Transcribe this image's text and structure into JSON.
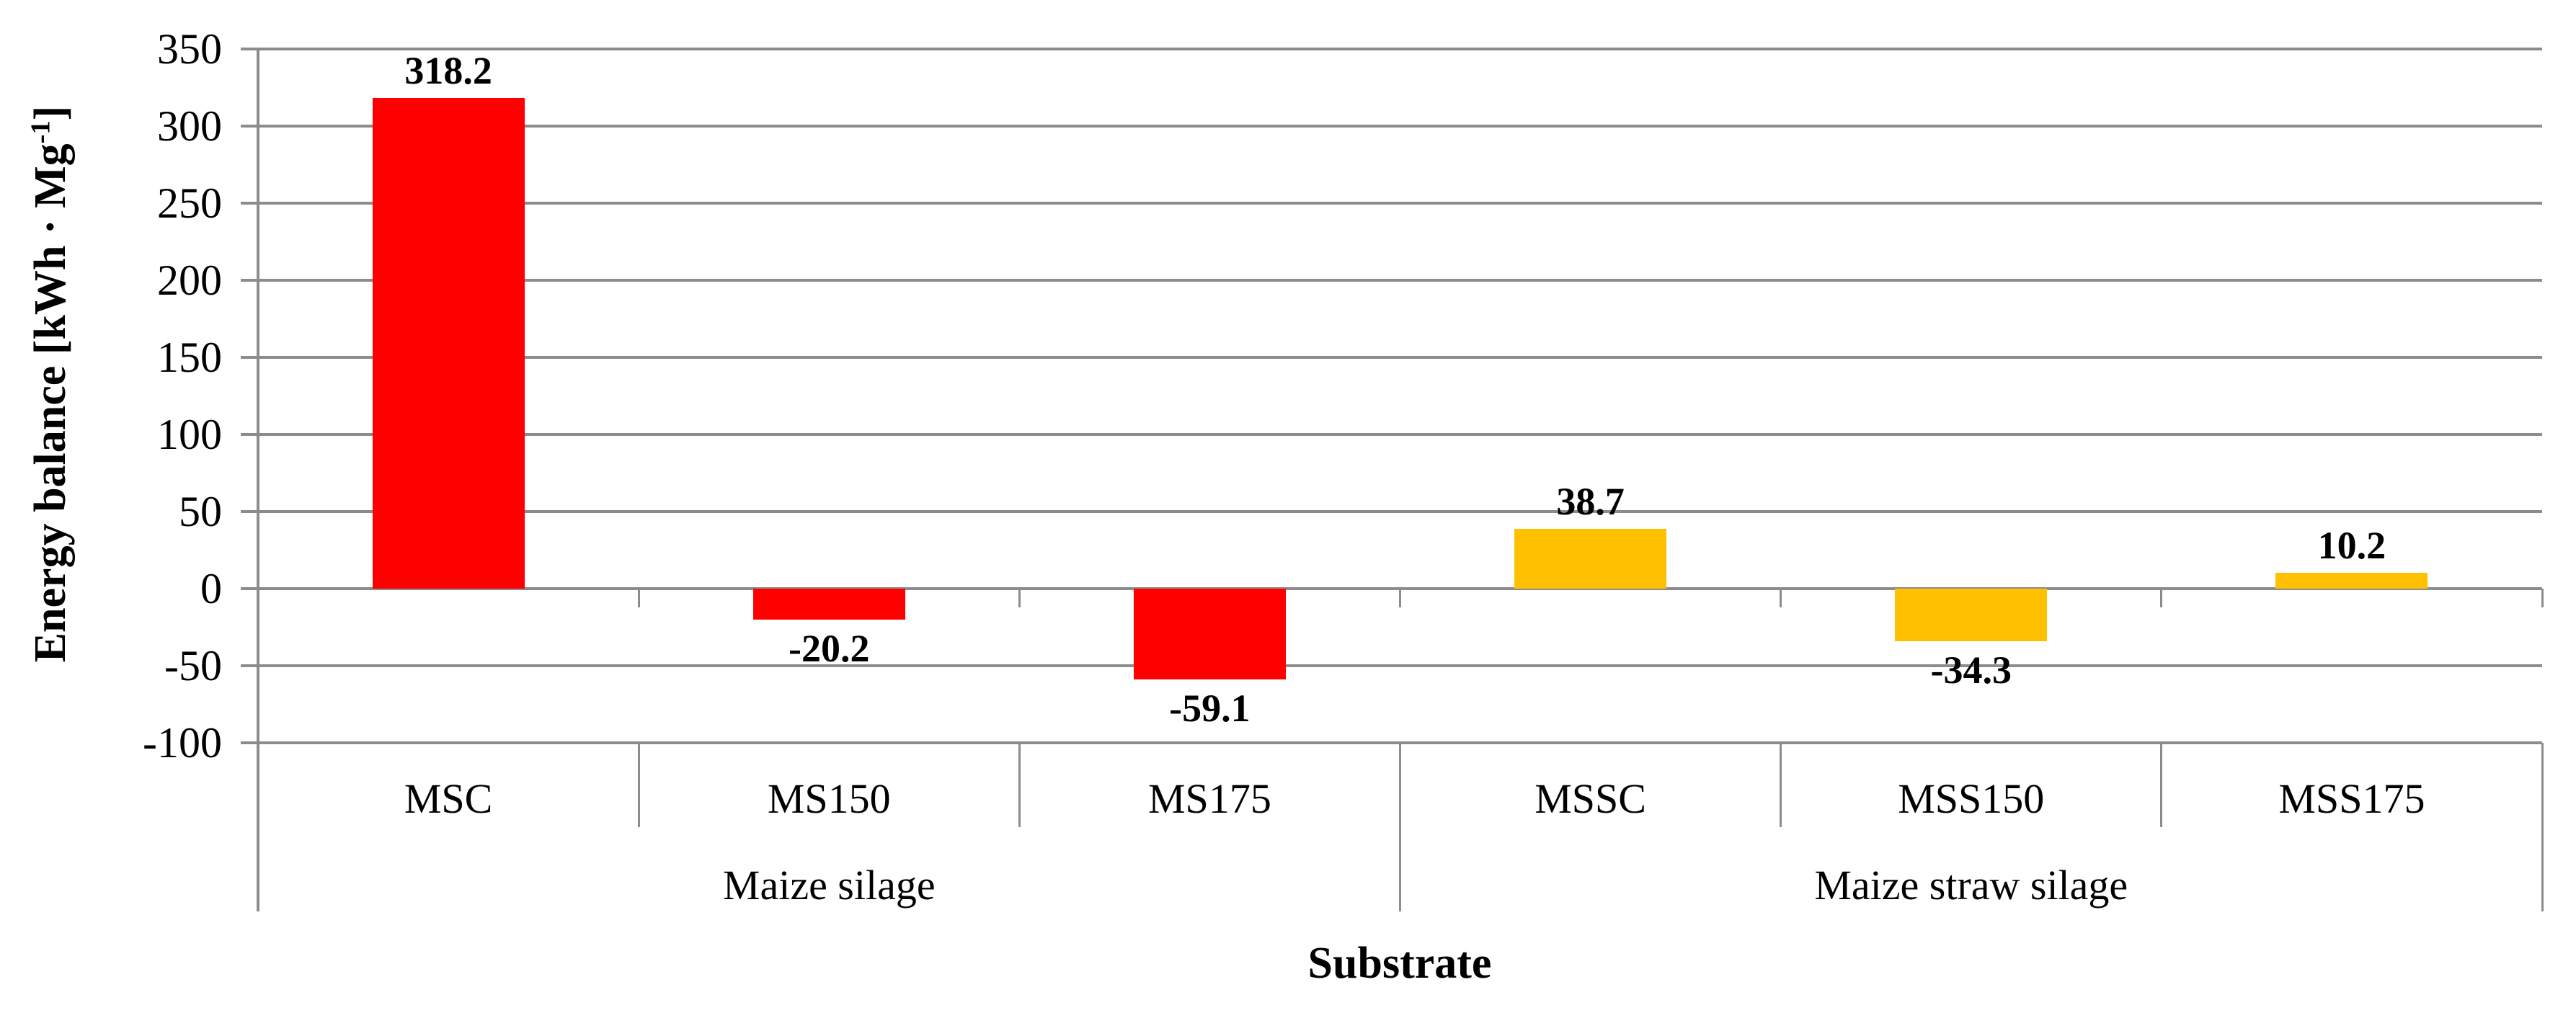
{
  "chart_data": {
    "type": "bar",
    "title": "",
    "xlabel": "Substrate",
    "ylabel": "Energy balance [kWh · Mg⁻¹]",
    "ylabel_parts": {
      "text": "Energy balance [kWh · Mg",
      "sup": "-1",
      "close": "]"
    },
    "ylim": [
      -100,
      350
    ],
    "ytick_step": 50,
    "yticks": [
      350,
      300,
      250,
      200,
      150,
      100,
      50,
      0,
      -50,
      -100
    ],
    "grid": true,
    "legend": "none",
    "categories": [
      "MSC",
      "MS150",
      "MS175",
      "MSSC",
      "MSS150",
      "MSS175"
    ],
    "values": [
      318.2,
      -20.2,
      -59.1,
      38.7,
      -34.3,
      10.2
    ],
    "value_labels": [
      "318.2",
      "-20.2",
      "-59.1",
      "38.7",
      "-34.3",
      "10.2"
    ],
    "bar_colors": [
      "#FF0000",
      "#FF0000",
      "#FF0000",
      "#FFC000",
      "#FFC000",
      "#FFC000"
    ],
    "groups": [
      {
        "label": "Maize silage",
        "start": 0,
        "span": 3,
        "color": "#FF0000"
      },
      {
        "label": "Maize straw silage",
        "start": 3,
        "span": 3,
        "color": "#FFC000"
      }
    ],
    "colors": {
      "red_series": "#FF0000",
      "gold_series": "#FFC000",
      "grid_line": "#8C8C8C",
      "text": "#000000",
      "background": "#FFFFFF"
    }
  }
}
